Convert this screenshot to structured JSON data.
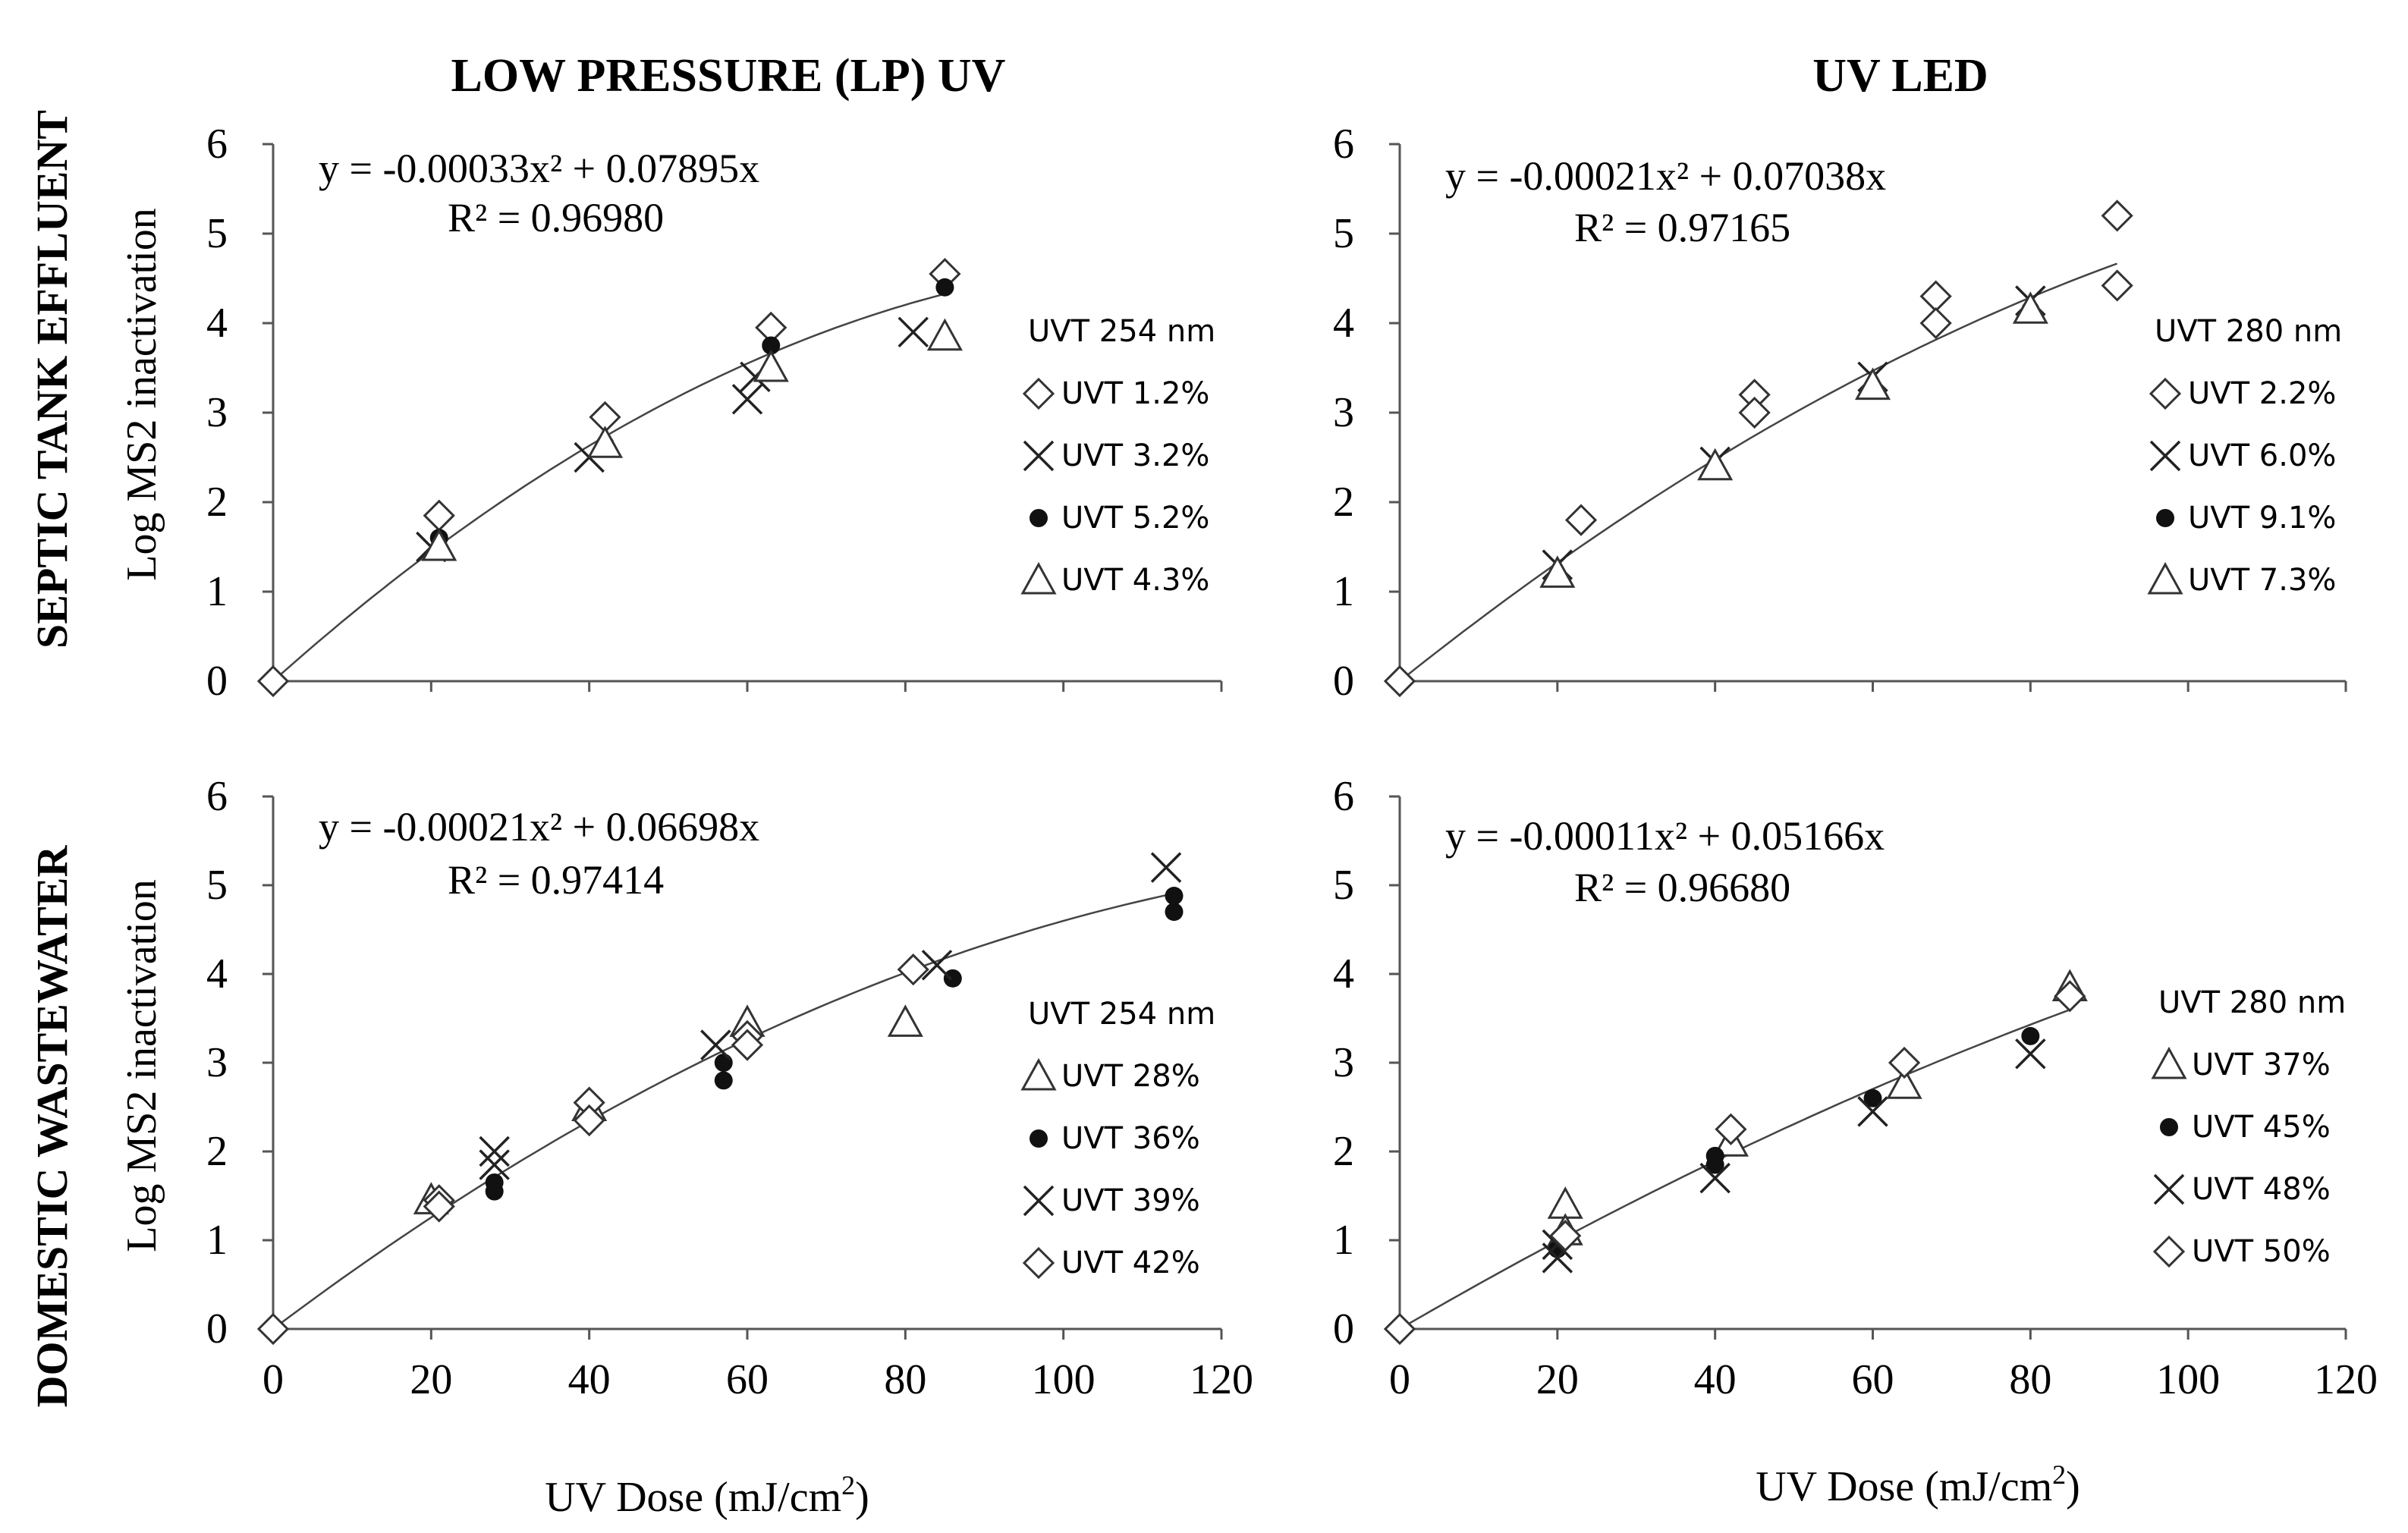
{
  "figure": {
    "col_titles": [
      "LOW PRESSURE (LP) UV",
      "UV LED"
    ],
    "row_titles": [
      "SEPTIC TANK EFFLUENT",
      "DOMESTIC WASTEWATER"
    ],
    "ylabel": "Log MS2 inactivation",
    "xlabel_main": "UV Dose (mJ/cm",
    "xlabel_sup": "2",
    "xlabel_close": ")"
  },
  "chart_data": [
    {
      "type": "scatter",
      "title": "LOW PRESSURE (LP) UV — SEPTIC TANK EFFLUENT",
      "xlim": [
        0,
        120
      ],
      "ylim": [
        0,
        6
      ],
      "xticks": [
        0,
        20,
        40,
        60,
        80,
        100,
        120
      ],
      "yticks": [
        0,
        1,
        2,
        3,
        4,
        5,
        6
      ],
      "fit": {
        "a": -0.00033,
        "b": 0.07895,
        "xmax": 85
      },
      "equation": "y = -0.00033x² + 0.07895x",
      "r2": "R² = 0.96980",
      "legend_title": "UVT 254 nm",
      "series": [
        {
          "name": "UVT 1.2%",
          "marker": "diamond",
          "points": [
            [
              0,
              0
            ],
            [
              21,
              1.85
            ],
            [
              42,
              2.95
            ],
            [
              63,
              3.95
            ],
            [
              85,
              4.55
            ]
          ]
        },
        {
          "name": "UVT 3.2%",
          "marker": "cross",
          "points": [
            [
              20,
              1.5
            ],
            [
              40,
              2.5
            ],
            [
              60,
              3.15
            ],
            [
              61,
              3.4
            ],
            [
              81,
              3.9
            ]
          ]
        },
        {
          "name": "UVT 5.2%",
          "marker": "dot",
          "points": [
            [
              21,
              1.6
            ],
            [
              42,
              2.65
            ],
            [
              63,
              3.75
            ],
            [
              85,
              4.4
            ]
          ]
        },
        {
          "name": "UVT 4.3%",
          "marker": "triangle",
          "points": [
            [
              21,
              1.5
            ],
            [
              42,
              2.65
            ],
            [
              63,
              3.5
            ],
            [
              85,
              3.85
            ]
          ]
        }
      ]
    },
    {
      "type": "scatter",
      "title": "UV LED — SEPTIC TANK EFFLUENT",
      "xlim": [
        0,
        120
      ],
      "ylim": [
        0,
        6
      ],
      "xticks": [
        0,
        20,
        40,
        60,
        80,
        100,
        120
      ],
      "yticks": [
        0,
        1,
        2,
        3,
        4,
        5,
        6
      ],
      "fit": {
        "a": -0.00021,
        "b": 0.07038,
        "xmax": 91
      },
      "equation": "y = -0.00021x² + 0.07038x",
      "r2": "R² = 0.97165",
      "legend_title": "UVT 280 nm",
      "series": [
        {
          "name": "UVT 2.2%",
          "marker": "diamond",
          "points": [
            [
              0,
              0
            ],
            [
              23,
              1.8
            ],
            [
              45,
              3.2
            ],
            [
              45,
              3.0
            ],
            [
              68,
              4.3
            ],
            [
              68,
              4.0
            ],
            [
              91,
              5.2
            ],
            [
              91,
              4.42
            ]
          ]
        },
        {
          "name": "UVT 6.0%",
          "marker": "cross",
          "points": [
            [
              20,
              1.3
            ],
            [
              40,
              2.45
            ],
            [
              60,
              3.4
            ],
            [
              80,
              4.25
            ]
          ]
        },
        {
          "name": "UVT 9.1%",
          "marker": "dot",
          "points": [
            [
              20,
              1.15
            ],
            [
              40,
              2.35
            ],
            [
              60,
              3.25
            ],
            [
              80,
              4.15
            ]
          ]
        },
        {
          "name": "UVT 7.3%",
          "marker": "triangle",
          "points": [
            [
              20,
              1.2
            ],
            [
              40,
              2.4
            ],
            [
              60,
              3.3
            ],
            [
              80,
              4.15
            ]
          ]
        }
      ]
    },
    {
      "type": "scatter",
      "title": "LOW PRESSURE (LP) UV — DOMESTIC WASTEWATER",
      "xlim": [
        0,
        120
      ],
      "ylim": [
        0,
        6
      ],
      "xticks": [
        0,
        20,
        40,
        60,
        80,
        100,
        120
      ],
      "yticks": [
        0,
        1,
        2,
        3,
        4,
        5,
        6
      ],
      "fit": {
        "a": -0.00021,
        "b": 0.06698,
        "xmax": 115
      },
      "equation": "y = -0.00021x² + 0.06698x",
      "r2": "R² = 0.97414",
      "legend_title": "UVT 254 nm",
      "series": [
        {
          "name": "UVT 28%",
          "marker": "triangle",
          "points": [
            [
              20,
              1.45
            ],
            [
              40,
              2.5
            ],
            [
              60,
              3.45
            ],
            [
              80,
              3.45
            ]
          ]
        },
        {
          "name": "UVT 36%",
          "marker": "dot",
          "points": [
            [
              28,
              1.55
            ],
            [
              28,
              1.65
            ],
            [
              57,
              2.8
            ],
            [
              57,
              3.0
            ],
            [
              86,
              3.95
            ],
            [
              114,
              4.7
            ],
            [
              114,
              4.88
            ]
          ]
        },
        {
          "name": "UVT 39%",
          "marker": "cross",
          "points": [
            [
              28,
              1.85
            ],
            [
              28,
              2.0
            ],
            [
              56,
              3.2
            ],
            [
              84,
              4.1
            ],
            [
              113,
              5.2
            ]
          ]
        },
        {
          "name": "UVT 42%",
          "marker": "diamond",
          "points": [
            [
              0,
              0
            ],
            [
              21,
              1.45
            ],
            [
              21,
              1.38
            ],
            [
              40,
              2.55
            ],
            [
              40,
              2.35
            ],
            [
              60,
              3.3
            ],
            [
              60,
              3.2
            ],
            [
              81,
              4.05
            ]
          ]
        }
      ]
    },
    {
      "type": "scatter",
      "title": "UV LED — DOMESTIC WASTEWATER",
      "xlim": [
        0,
        120
      ],
      "ylim": [
        0,
        6
      ],
      "xticks": [
        0,
        20,
        40,
        60,
        80,
        100,
        120
      ],
      "yticks": [
        0,
        1,
        2,
        3,
        4,
        5,
        6
      ],
      "fit": {
        "a": -0.00011,
        "b": 0.05166,
        "xmax": 85
      },
      "equation": "y = -0.00011x² + 0.05166x",
      "r2": "R² = 0.96680",
      "legend_title": "UVT 280 nm",
      "series": [
        {
          "name": "UVT 37%",
          "marker": "triangle",
          "points": [
            [
              21,
              1.4
            ],
            [
              21,
              1.1
            ],
            [
              42,
              2.1
            ],
            [
              64,
              2.75
            ],
            [
              85,
              3.85
            ]
          ]
        },
        {
          "name": "UVT 45%",
          "marker": "dot",
          "points": [
            [
              20,
              0.9
            ],
            [
              40,
              1.95
            ],
            [
              40,
              1.85
            ],
            [
              60,
              2.6
            ],
            [
              80,
              3.3
            ]
          ]
        },
        {
          "name": "UVT 48%",
          "marker": "cross",
          "points": [
            [
              20,
              0.8
            ],
            [
              20,
              0.95
            ],
            [
              40,
              1.7
            ],
            [
              60,
              2.45
            ],
            [
              80,
              3.1
            ]
          ]
        },
        {
          "name": "UVT 50%",
          "marker": "diamond",
          "points": [
            [
              0,
              0
            ],
            [
              21,
              1.05
            ],
            [
              42,
              2.25
            ],
            [
              64,
              3.0
            ],
            [
              85,
              3.75
            ]
          ]
        }
      ]
    }
  ]
}
